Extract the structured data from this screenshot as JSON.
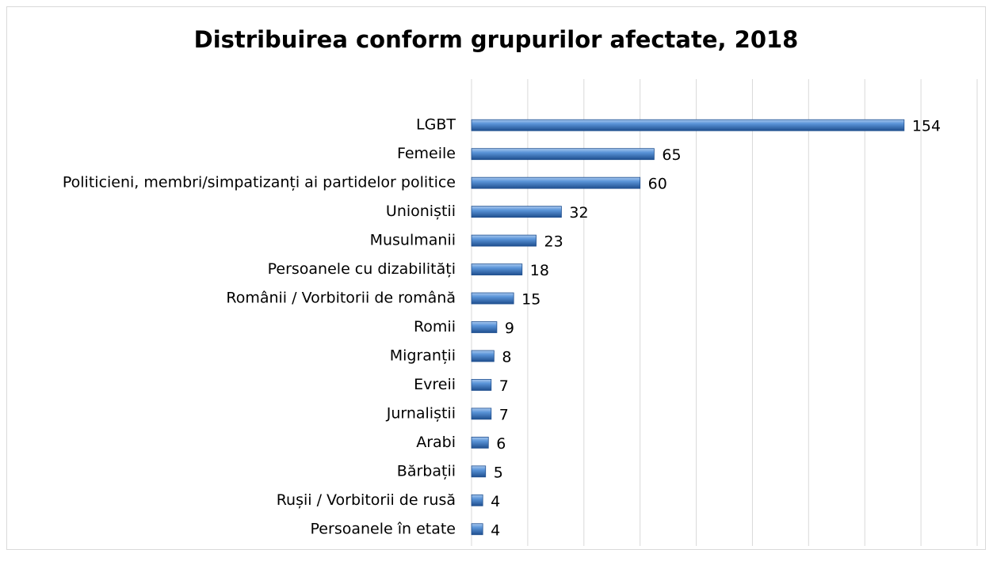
{
  "chart_data": {
    "type": "barh",
    "title": "Distribuirea conform grupurilor afectate, 2018",
    "categories": [
      "LGBT",
      "Femeile",
      "Politicieni, membri/simpatizanți ai partidelor politice",
      "Unioniștii",
      "Musulmanii",
      "Persoanele cu dizabilități",
      "Românii / Vorbitorii de română",
      "Romii",
      "Migranții",
      "Evreii",
      "Jurnaliștii",
      "Arabi",
      "Bărbații",
      "Rușii  / Vorbitorii de rusă",
      "Persoanele în etate"
    ],
    "values": [
      154,
      65,
      60,
      32,
      23,
      18,
      15,
      9,
      8,
      7,
      7,
      6,
      5,
      4,
      4
    ],
    "color": "#4a86d0",
    "xlim": [
      0,
      180
    ],
    "xticks": [
      0,
      20,
      40,
      60,
      80,
      100,
      120,
      140,
      160,
      180
    ],
    "grid": true
  }
}
